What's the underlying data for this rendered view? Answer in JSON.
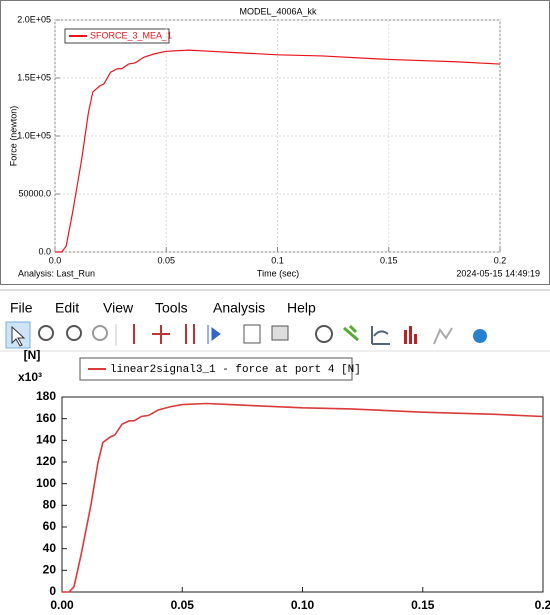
{
  "chart_data": [
    {
      "type": "line",
      "title": "MODEL_4006A_kk",
      "y_label": "Force (newton)",
      "x_label": "Time (sec)",
      "analysis_label": "Analysis:  Last_Run",
      "timestamp": "2024-05-15 14:49:19",
      "x": [
        0,
        0.003,
        0.005,
        0.008,
        0.012,
        0.015,
        0.017,
        0.02,
        0.022,
        0.025,
        0.028,
        0.03,
        0.033,
        0.036,
        0.04,
        0.045,
        0.05,
        0.06,
        0.07,
        0.08,
        0.1,
        0.12,
        0.15,
        0.18,
        0.2
      ],
      "series": [
        {
          "name": "SFORCE_3_MEA_1",
          "color": "#e8141c",
          "values": [
            0,
            0,
            5000,
            35000,
            80000,
            120000,
            138000,
            143000,
            145000,
            155000,
            158000,
            158000,
            162000,
            163000,
            168000,
            171000,
            173000,
            174000,
            173000,
            172000,
            170000,
            169000,
            166000,
            164000,
            162000
          ]
        }
      ],
      "xlim": [
        0,
        0.2
      ],
      "ylim": [
        0,
        200000
      ],
      "xticks": [
        {
          "value": 0,
          "label": "0.0"
        },
        0.05,
        0.1,
        0.15,
        0.2
      ],
      "yticks": [
        {
          "value": 0,
          "label": "0.0"
        },
        {
          "value": 50000,
          "label": "50000.0"
        },
        {
          "value": 100000,
          "label": "1.0E+05"
        },
        {
          "value": 150000,
          "label": "1.5E+05"
        },
        {
          "value": 200000,
          "label": "2.0E+05"
        }
      ],
      "grid": true
    },
    {
      "type": "line",
      "y_label": "[N]",
      "multiplier_label": "x10³",
      "x": [
        0,
        0.003,
        0.005,
        0.008,
        0.012,
        0.015,
        0.017,
        0.02,
        0.022,
        0.025,
        0.028,
        0.03,
        0.033,
        0.036,
        0.04,
        0.045,
        0.05,
        0.06,
        0.07,
        0.08,
        0.1,
        0.12,
        0.15,
        0.18,
        0.2
      ],
      "series": [
        {
          "name": "linear2signal3_1 - force at port 4 [N]",
          "color": "#d93a3a",
          "values": [
            0,
            0,
            5,
            35,
            80,
            120,
            138,
            143,
            145,
            155,
            158,
            158,
            162,
            163,
            168,
            171,
            173,
            174,
            173,
            172,
            170,
            169,
            166,
            164,
            162
          ]
        }
      ],
      "xlim": [
        0,
        0.2
      ],
      "ylim": [
        0,
        180
      ],
      "xticks": [
        {
          "value": 0,
          "label": "0.00"
        },
        0.05,
        {
          "value": 0.1,
          "label": "0.10"
        },
        0.15,
        0.2
      ],
      "yticks": [
        0,
        20,
        40,
        60,
        80,
        100,
        120,
        140,
        160,
        180
      ],
      "grid": false
    }
  ],
  "menu": [
    "File",
    "Edit",
    "View",
    "Tools",
    "Analysis",
    "Help"
  ]
}
